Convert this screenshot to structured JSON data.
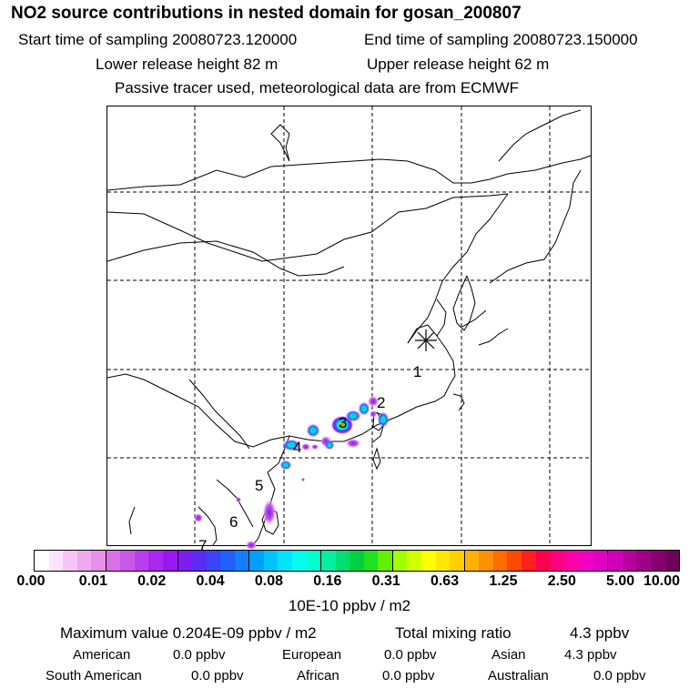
{
  "header": {
    "title": "NO2 source contributions in nested domain for gosan_200807",
    "start_label": "Start time of sampling 20080723.120000",
    "end_label": "End time of sampling 20080723.150000",
    "lower_label": "Lower release height   82 m",
    "upper_label": "Upper release height   62 m",
    "tracer_note": "Passive tracer used, meteorological data are from ECMWF"
  },
  "map": {
    "receptor_symbol": "*",
    "region_labels": [
      "1",
      "2",
      "3",
      "4",
      "5",
      "6",
      "7"
    ]
  },
  "colorbar": {
    "tick_labels": [
      "0.00",
      "0.01",
      "0.02",
      "0.04",
      "0.08",
      "0.16",
      "0.31",
      "0.63",
      "1.25",
      "2.50",
      "5.00",
      "10.00"
    ],
    "unit_label": "10E-10 ppbv / m2",
    "colors": [
      [
        "#ffffff",
        "#fbe4fb",
        "#f5c6f5",
        "#eeaaee",
        "#e890e8"
      ],
      [
        "#d870e8",
        "#c858e8",
        "#b840ec",
        "#a828f0",
        "#9a18f0"
      ],
      [
        "#7c1cf0",
        "#5a2cf4",
        "#3a44f8",
        "#2060fc",
        "#1080ff"
      ],
      [
        "#00a0ff",
        "#00c4ff",
        "#00e4ff",
        "#00ffee",
        "#00ffcc"
      ],
      [
        "#00f0a0",
        "#00e070",
        "#00d040",
        "#20e020",
        "#60f000"
      ],
      [
        "#a0ff00",
        "#d0ff00",
        "#ffff00",
        "#ffe800",
        "#ffd000"
      ],
      [
        "#ffb000",
        "#ff9000",
        "#ff6c00",
        "#ff4800",
        "#ff2020"
      ],
      [
        "#ff0050",
        "#ff0080",
        "#ff00a8",
        "#f000c0",
        "#e000c8"
      ],
      [
        "#d000b8",
        "#b800a0",
        "#a00088",
        "#880070",
        "#700058"
      ]
    ]
  },
  "stats": {
    "max_value": "Maximum value  0.204E-09 ppbv / m2",
    "total_label": "Total mixing ratio",
    "total_value": "4.3 ppbv"
  },
  "regions": [
    {
      "name": "American",
      "value": "0.0 ppbv"
    },
    {
      "name": "European",
      "value": "0.0 ppbv"
    },
    {
      "name": "Asian",
      "value": "4.3 ppbv"
    },
    {
      "name": "South American",
      "value": "0.0 ppbv"
    },
    {
      "name": "African",
      "value": "0.0 ppbv"
    },
    {
      "name": "Australian",
      "value": "0.0 ppbv"
    }
  ]
}
